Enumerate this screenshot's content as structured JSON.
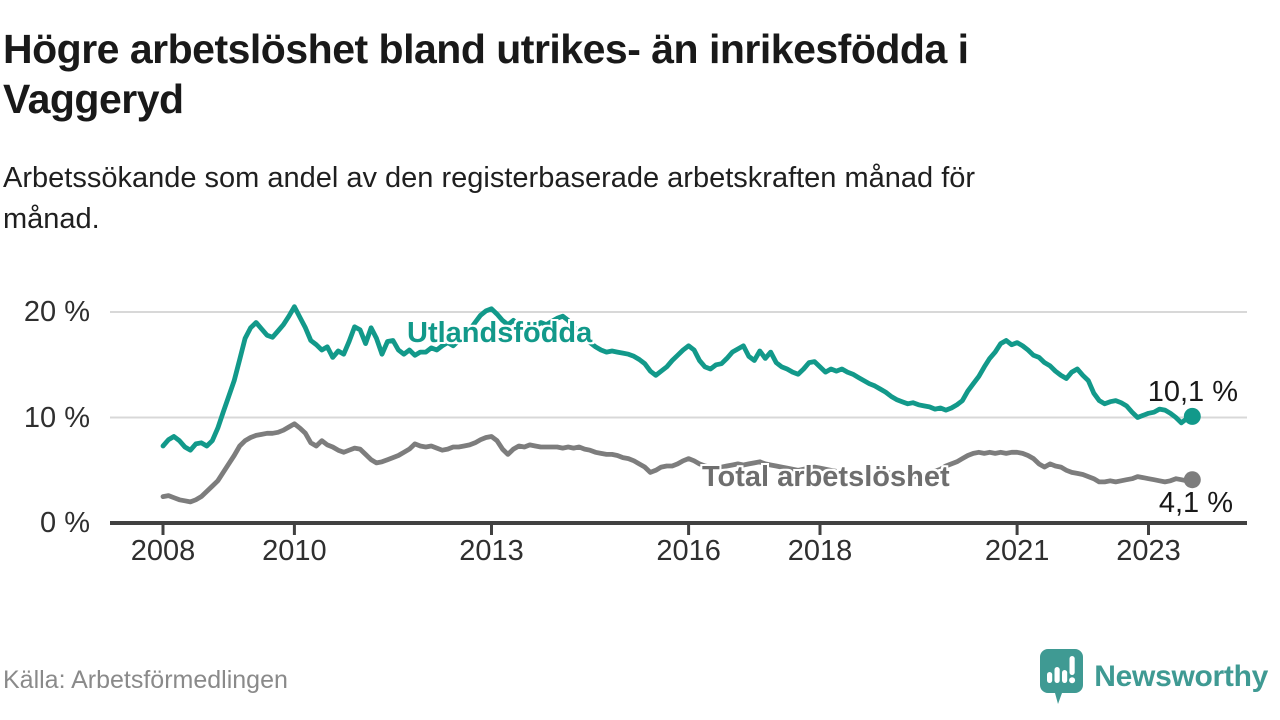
{
  "header": {
    "title_lines": [
      "Högre arbetslöshet bland utrikes- än inrikesfödda i",
      "Vaggeryd"
    ],
    "subtitle_lines": [
      "Arbetssökande som andel av den registerbaserade arbetskraften månad för",
      "månad."
    ]
  },
  "chart_data": {
    "type": "line",
    "title": "Högre arbetslöshet bland utrikes- än inrikesfödda i Vaggeryd",
    "subtitle": "Arbetssökande som andel av den registerbaserade arbetskraften månad för månad.",
    "x_unit": "month",
    "x_start_year": 2008,
    "x_end": "2023-09",
    "x_tick_years": [
      2008,
      2010,
      2013,
      2016,
      2018,
      2021,
      2023
    ],
    "y_ticks": [
      {
        "value": 0,
        "label": "0 %"
      },
      {
        "value": 10,
        "label": "10 %"
      },
      {
        "value": 20,
        "label": "20 %"
      }
    ],
    "ylim": [
      0,
      21.5
    ],
    "grid": "horizontal",
    "legend_position": "inline-labels",
    "series": [
      {
        "name": "Utlandsfödda",
        "color": "#12998a",
        "label_color": "#12998a",
        "end_label": "10,1 %",
        "end_value": 10.1,
        "values": [
          7.3,
          7.9,
          8.2,
          7.8,
          7.2,
          6.9,
          7.5,
          7.6,
          7.3,
          7.8,
          9.0,
          10.5,
          12.0,
          13.5,
          15.5,
          17.5,
          18.5,
          19.0,
          18.4,
          17.8,
          17.6,
          18.2,
          18.8,
          19.6,
          20.5,
          19.5,
          18.5,
          17.3,
          16.9,
          16.4,
          16.7,
          15.7,
          16.3,
          16.0,
          17.2,
          18.6,
          18.3,
          17.0,
          18.5,
          17.5,
          16.0,
          17.2,
          17.3,
          16.4,
          16.0,
          16.4,
          15.9,
          16.2,
          16.2,
          16.6,
          16.4,
          16.8,
          17.1,
          16.8,
          17.3,
          17.8,
          18.3,
          19.0,
          19.7,
          20.1,
          20.3,
          19.8,
          19.2,
          18.8,
          19.2,
          18.8,
          18.5,
          18.9,
          18.6,
          19.0,
          18.8,
          19.1,
          19.4,
          19.6,
          19.2,
          18.6,
          17.9,
          17.4,
          17.1,
          16.7,
          16.4,
          16.2,
          16.3,
          16.2,
          16.1,
          16.0,
          15.8,
          15.5,
          15.1,
          14.4,
          14.0,
          14.4,
          14.8,
          15.4,
          15.9,
          16.4,
          16.8,
          16.4,
          15.4,
          14.8,
          14.6,
          15.0,
          15.1,
          15.6,
          16.2,
          16.5,
          16.8,
          15.8,
          15.4,
          16.3,
          15.6,
          16.2,
          15.2,
          14.8,
          14.6,
          14.3,
          14.1,
          14.6,
          15.2,
          15.3,
          14.8,
          14.3,
          14.6,
          14.4,
          14.6,
          14.3,
          14.1,
          13.8,
          13.5,
          13.2,
          13.0,
          12.7,
          12.4,
          12.0,
          11.7,
          11.5,
          11.3,
          11.4,
          11.2,
          11.1,
          11.0,
          10.8,
          10.9,
          10.7,
          10.9,
          11.2,
          11.6,
          12.5,
          13.2,
          13.9,
          14.8,
          15.6,
          16.2,
          17.0,
          17.3,
          16.9,
          17.1,
          16.8,
          16.4,
          15.9,
          15.7,
          15.2,
          14.9,
          14.4,
          14.0,
          13.7,
          14.3,
          14.6,
          14.0,
          13.5,
          12.3,
          11.6,
          11.3,
          11.5,
          11.6,
          11.4,
          11.1,
          10.5,
          10.0,
          10.2,
          10.4,
          10.5,
          10.8,
          10.7,
          10.4,
          10.0,
          9.5,
          9.9,
          10.1
        ]
      },
      {
        "name": "Total arbetslöshet",
        "color": "#7d7d7d",
        "label_color": "#6e6e6e",
        "end_label": "4,1 %",
        "end_value": 4.1,
        "values": [
          2.5,
          2.6,
          2.4,
          2.2,
          2.1,
          2.0,
          2.2,
          2.5,
          3.0,
          3.5,
          4.0,
          4.8,
          5.6,
          6.4,
          7.3,
          7.8,
          8.1,
          8.3,
          8.4,
          8.5,
          8.5,
          8.6,
          8.8,
          9.1,
          9.4,
          9.0,
          8.5,
          7.6,
          7.3,
          7.8,
          7.4,
          7.2,
          6.9,
          6.7,
          6.9,
          7.1,
          7.0,
          6.5,
          6.0,
          5.7,
          5.8,
          6.0,
          6.2,
          6.4,
          6.7,
          7.0,
          7.5,
          7.3,
          7.2,
          7.3,
          7.1,
          6.9,
          7.0,
          7.2,
          7.2,
          7.3,
          7.4,
          7.6,
          7.9,
          8.1,
          8.2,
          7.8,
          7.0,
          6.5,
          7.0,
          7.3,
          7.2,
          7.4,
          7.3,
          7.2,
          7.2,
          7.2,
          7.2,
          7.1,
          7.2,
          7.1,
          7.2,
          7.0,
          6.9,
          6.7,
          6.6,
          6.5,
          6.5,
          6.4,
          6.2,
          6.1,
          5.9,
          5.6,
          5.3,
          4.8,
          5.0,
          5.3,
          5.4,
          5.4,
          5.6,
          5.9,
          6.1,
          5.9,
          5.6,
          5.4,
          5.3,
          5.2,
          5.3,
          5.4,
          5.5,
          5.6,
          5.5,
          5.6,
          5.7,
          5.8,
          5.6,
          5.5,
          5.4,
          5.3,
          5.2,
          5.1,
          5.0,
          5.1,
          5.2,
          5.3,
          5.2,
          5.1,
          5.0,
          4.9,
          4.8,
          4.7,
          4.6,
          4.6,
          4.5,
          4.5,
          4.6,
          4.7,
          4.8,
          4.7,
          4.6,
          4.5,
          4.5,
          4.4,
          4.5,
          4.6,
          4.7,
          4.9,
          5.1,
          5.4,
          5.6,
          5.8,
          6.1,
          6.4,
          6.6,
          6.7,
          6.6,
          6.7,
          6.6,
          6.7,
          6.6,
          6.7,
          6.7,
          6.6,
          6.4,
          6.1,
          5.6,
          5.3,
          5.6,
          5.4,
          5.3,
          5.0,
          4.8,
          4.7,
          4.6,
          4.4,
          4.2,
          3.9,
          3.9,
          4.0,
          3.9,
          4.0,
          4.1,
          4.2,
          4.4,
          4.3,
          4.2,
          4.1,
          4.0,
          3.9,
          4.0,
          4.2,
          4.1,
          4.0,
          4.1
        ]
      }
    ]
  },
  "footer": {
    "source": "Källa: Arbetsförmedlingen",
    "brand": "Newsworthy"
  },
  "colors": {
    "accent_teal": "#12998a",
    "line_gray": "#7d7d7d",
    "brand_teal": "#3f9a93",
    "grid": "#d8d8d8",
    "axis": "#414141"
  }
}
